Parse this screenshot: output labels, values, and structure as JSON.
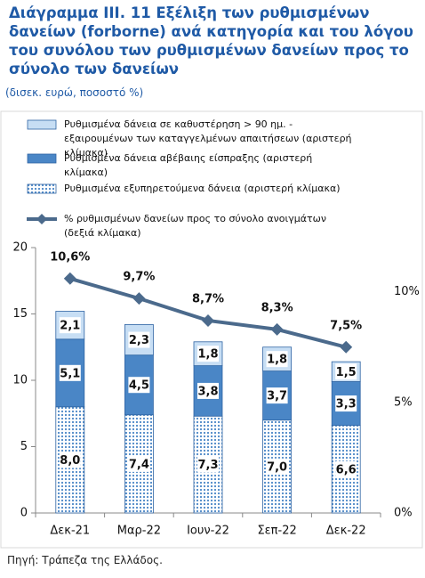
{
  "chart_data": {
    "type": "bar",
    "stacked": true,
    "title": "Διάγραμμα ΙΙΙ. 11 Εξέλιξη των ρυθμισμένων δανείων (forborne) ανά κατηγορία και του λόγου του συνόλου των ρυθμισμένων δανείων προς το σύνολο των δανείων",
    "subtitle": "(δισεκ. ευρώ, ποσοστό %)",
    "source": "Πηγή: Τράπεζα της Ελλάδος.",
    "categories": [
      "Δεκ-21",
      "Μαρ-22",
      "Ιουν-22",
      "Σεπ-22",
      "Δεκ-22"
    ],
    "ylim": [
      0,
      20
    ],
    "yticks": [
      0,
      5,
      10,
      15,
      20
    ],
    "y2lim": [
      0,
      12
    ],
    "y2ticks": [
      {
        "value": 0,
        "label": "0%"
      },
      {
        "value": 5,
        "label": "5%"
      },
      {
        "value": 10,
        "label": "10%"
      }
    ],
    "series": [
      {
        "name": "Ρυθμισμένα δάνεια σε καθυστέρηση > 90 ημ. - εξαιρουμένων των καταγγελμένων απαιτήσεων (αριστερή κλίμακα)",
        "color": "#c7def4",
        "type": "bar",
        "stack_order": 2,
        "values": [
          2.1,
          2.3,
          1.8,
          1.8,
          1.5
        ],
        "value_labels": [
          "2,1",
          "2,3",
          "1,8",
          "1,8",
          "1,5"
        ]
      },
      {
        "name": "Ρυθμισμένα δάνεια αβέβαιης είσπραξης (αριστερή κλίμακα)",
        "color": "#4a86c6",
        "type": "bar",
        "stack_order": 1,
        "values": [
          5.1,
          4.5,
          3.8,
          3.7,
          3.3
        ],
        "value_labels": [
          "5,1",
          "4,5",
          "3,8",
          "3,7",
          "3,3"
        ]
      },
      {
        "name": "Ρυθμισμένα εξυπηρετούμενα δάνεια (αριστερή κλίμακα)",
        "color": "#4a86c6",
        "type": "bar",
        "pattern": "dots",
        "stack_order": 0,
        "values": [
          8,
          7.4,
          7.3,
          7,
          6.6
        ],
        "value_labels": [
          "8,0",
          "7,4",
          "7,3",
          "7,0",
          "6,6"
        ]
      },
      {
        "name": "% ρυθμισμένων δανείων προς το σύνολο ανοιγμάτων (δεξιά κλίμακα)",
        "color": "#4b6a8c",
        "type": "line",
        "axis": "y2",
        "values": [
          10.6,
          9.7,
          8.7,
          8.3,
          7.5
        ],
        "value_labels": [
          "10,6%",
          "9,7%",
          "8,7%",
          "8,3%",
          "7,5%"
        ]
      }
    ]
  }
}
